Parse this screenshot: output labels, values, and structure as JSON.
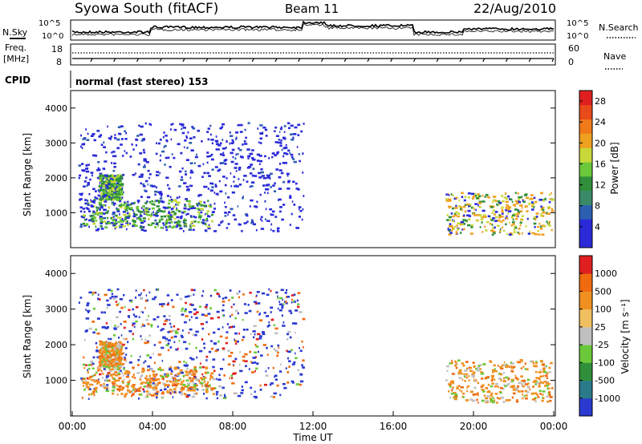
{
  "header": {
    "title": "Syowa South (fitACF)",
    "beam": "Beam 11",
    "date": "22/Aug/2010"
  },
  "panels": {
    "nsky_label": "N.Sky",
    "nsearch_label": "N.Search",
    "count_ticks": [
      "10^5",
      "10^0"
    ],
    "freq_label_1": "Freq.",
    "freq_label_2": "[MHz]",
    "freq_ticks": [
      "18",
      "8"
    ],
    "nave_label": "Nave",
    "nave_ticks": [
      "60",
      "0"
    ],
    "cpid_label": "CPID",
    "cpid_value": "normal (fast stereo) 153"
  },
  "chart_data": [
    {
      "type": "heatmap",
      "name": "power",
      "ylabel": "Slant Range [km]",
      "yticks": [
        "1000",
        "2000",
        "3000",
        "4000"
      ],
      "ylim": [
        0,
        4500
      ],
      "xlim": [
        "00:00",
        "24:00"
      ],
      "colorbar": {
        "label": "Power [dB]",
        "ticks": [
          "4",
          "8",
          "12",
          "16",
          "20",
          "24",
          "28"
        ],
        "range": [
          0,
          30
        ],
        "colors": [
          "#2a2ad8",
          "#2a2ad8",
          "#2d5fb0",
          "#3a8a6a",
          "#2f8f3a",
          "#6ac83a",
          "#c8d83a",
          "#f0a020",
          "#f07a1a",
          "#e84a1a",
          "#e02020"
        ]
      },
      "echo_regions": [
        {
          "t0": 0.3,
          "t1": 11.5,
          "r0": 500,
          "r1": 3600,
          "dominant": "weak"
        },
        {
          "t0": 1.3,
          "t1": 2.4,
          "r0": 1400,
          "r1": 2100,
          "dominant": "green"
        },
        {
          "t0": 0.5,
          "t1": 7.0,
          "r0": 600,
          "r1": 1400,
          "dominant": "green"
        },
        {
          "t0": 18.6,
          "t1": 23.9,
          "r0": 400,
          "r1": 1600,
          "dominant": "orange"
        }
      ]
    },
    {
      "type": "heatmap",
      "name": "velocity",
      "ylabel": "Slant Range [km]",
      "yticks": [
        "1000",
        "2000",
        "3000",
        "4000"
      ],
      "ylim": [
        0,
        4500
      ],
      "xlim": [
        "00:00",
        "24:00"
      ],
      "colorbar": {
        "label": "Velocity [m s⁻¹]",
        "ticks": [
          "1000",
          "500",
          "100",
          "25",
          "-25",
          "-100",
          "-500",
          "-1000"
        ],
        "range": [
          -1250,
          1250
        ],
        "colors": [
          "#2a3ad0",
          "#2a7a8a",
          "#2f8f3a",
          "#6ac83a",
          "#c0c0c0",
          "#f0c060",
          "#f09020",
          "#f06a10",
          "#e02020"
        ]
      },
      "echo_regions": [
        {
          "t0": 0.3,
          "t1": 11.5,
          "r0": 500,
          "r1": 3600,
          "dominant": "mixed"
        },
        {
          "t0": 1.3,
          "t1": 2.4,
          "r0": 1400,
          "r1": 2100,
          "dominant": "orange"
        },
        {
          "t0": 0.5,
          "t1": 7.0,
          "r0": 600,
          "r1": 1400,
          "dominant": "orange"
        },
        {
          "t0": 18.6,
          "t1": 23.9,
          "r0": 400,
          "r1": 1600,
          "dominant": "orange"
        }
      ]
    }
  ],
  "xaxis": {
    "ticks": [
      "00:00",
      "04:00",
      "08:00",
      "12:00",
      "16:00",
      "20:00",
      "00:00"
    ],
    "label": "Time UT"
  }
}
